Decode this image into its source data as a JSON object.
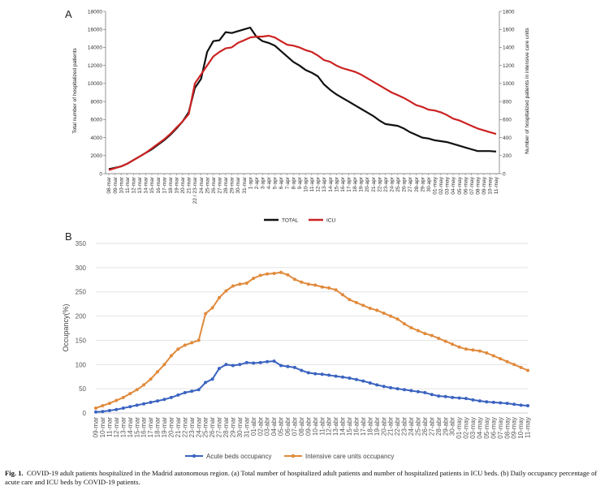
{
  "chart_data": [
    {
      "type": "line",
      "panel_label": "A",
      "ylabel": "Total number of hospitalized patients",
      "y2label": "Number of hospitalized patients in intensive care units",
      "ylim": [
        0,
        18000
      ],
      "y2lim": [
        0,
        1800
      ],
      "yticks": [
        0,
        2000,
        4000,
        6000,
        8000,
        10000,
        12000,
        14000,
        16000,
        18000
      ],
      "y2ticks": [
        0,
        200,
        400,
        600,
        800,
        1000,
        1200,
        1400,
        1600,
        1800
      ],
      "categories": [
        "08-mar",
        "09-mar",
        "10-mar",
        "11-mar",
        "12-mar",
        "13-mar",
        "14-mar",
        "15-mar",
        "16-mar",
        "17-mar",
        "18-mar",
        "19-mar",
        "20-mar",
        "21-mar",
        "22 / 23-mar",
        "24-mar",
        "25-mar",
        "26-mar",
        "27-mar",
        "28-mar",
        "29-mar",
        "30-mar",
        "31-mar",
        "1-apr",
        "2-apr",
        "3-apr",
        "4-apr",
        "5-apr",
        "6-apr",
        "7-apr",
        "8-apr",
        "9-apr",
        "10-apr",
        "11-apr",
        "12-apr",
        "13-apr",
        "14-apr",
        "15-apr",
        "16-apr",
        "17-apr",
        "18-apr",
        "19-apr",
        "20-apr",
        "21-apr",
        "22-apr",
        "23-apr",
        "24-apr",
        "25-apr",
        "26-apr",
        "27-apr",
        "28-apr",
        "29-apr",
        "30-apr",
        "01-may",
        "02-may",
        "03-may",
        "04-may",
        "05-may",
        "06-may",
        "07-may",
        "08-may",
        "09-may",
        "10-may",
        "11-may"
      ],
      "series": [
        {
          "name": "TOTAL",
          "axis": "left",
          "color": "#111111",
          "values": [
            500,
            650,
            800,
            1100,
            1500,
            1900,
            2300,
            2700,
            3200,
            3700,
            4300,
            5000,
            5800,
            6800,
            9500,
            10500,
            13500,
            14700,
            14800,
            15700,
            15600,
            15800,
            16000,
            16200,
            15200,
            14700,
            14500,
            14200,
            13600,
            13000,
            12400,
            12000,
            11500,
            11200,
            10800,
            9900,
            9300,
            8800,
            8400,
            8000,
            7600,
            7200,
            6800,
            6400,
            5900,
            5500,
            5400,
            5300,
            5000,
            4600,
            4300,
            4000,
            3900,
            3700,
            3600,
            3500,
            3300,
            3100,
            2900,
            2700,
            2500,
            2500,
            2500,
            2450
          ]
        },
        {
          "name": "ICU",
          "axis": "right",
          "color": "#cc2222",
          "values": [
            40,
            60,
            80,
            110,
            150,
            190,
            230,
            280,
            330,
            380,
            440,
            510,
            580,
            660,
            1000,
            1100,
            1200,
            1300,
            1350,
            1390,
            1400,
            1450,
            1480,
            1510,
            1520,
            1520,
            1530,
            1510,
            1470,
            1430,
            1420,
            1400,
            1370,
            1350,
            1310,
            1260,
            1240,
            1200,
            1170,
            1150,
            1130,
            1100,
            1060,
            1020,
            980,
            940,
            900,
            870,
            840,
            800,
            760,
            740,
            710,
            700,
            680,
            650,
            610,
            590,
            560,
            530,
            500,
            480,
            460,
            440
          ]
        }
      ],
      "legend_position": "bottom"
    },
    {
      "type": "line",
      "panel_label": "B",
      "ylabel": "Occupancy(%)",
      "ylim": [
        0,
        350
      ],
      "yticks": [
        0,
        50,
        100,
        150,
        200,
        250,
        300,
        350
      ],
      "categories": [
        "09-mar",
        "10-mar",
        "11-mar",
        "12-mar",
        "13-mar",
        "14-mar",
        "15-mar",
        "16-mar",
        "17-mar",
        "18-mar",
        "19-mar",
        "20-mar",
        "21-mar",
        "22-mar",
        "23-mar",
        "24-mar",
        "25-mar",
        "26-mar",
        "27-mar",
        "28-mar",
        "29-mar",
        "30-mar",
        "31-mar",
        "01-abr",
        "02-abr",
        "03-abr",
        "04-abr",
        "05-abr",
        "06-abr",
        "07-abr",
        "08-abr",
        "09-abr",
        "10-abr",
        "11-abr",
        "12-abr",
        "13-abr",
        "14-abr",
        "15-abr",
        "16-abr",
        "17-abr",
        "18-abr",
        "19-abr",
        "20-abr",
        "21-abr",
        "22-abr",
        "23-abr",
        "24-abr",
        "25-abr",
        "26-abr",
        "27-abr",
        "28-abr",
        "29-abr",
        "30-abr",
        "01-may",
        "02-may",
        "03-may",
        "04-may",
        "05-may",
        "06-may",
        "07-may",
        "08-may",
        "09-may",
        "10-may",
        "11-may"
      ],
      "series": [
        {
          "name": "Acute beds occupancy",
          "color": "#3a63c0",
          "values": [
            2,
            3,
            5,
            7,
            10,
            13,
            16,
            19,
            22,
            25,
            28,
            32,
            37,
            42,
            45,
            48,
            63,
            70,
            92,
            100,
            98,
            100,
            104,
            103,
            104,
            106,
            107,
            98,
            96,
            94,
            88,
            83,
            81,
            80,
            78,
            76,
            74,
            72,
            69,
            66,
            62,
            58,
            55,
            52,
            50,
            48,
            46,
            44,
            42,
            38,
            35,
            34,
            32,
            31,
            30,
            27,
            25,
            23,
            22,
            21,
            20,
            18,
            16,
            15
          ]
        },
        {
          "name": "Intensive care units occupancy",
          "color": "#e08a3c",
          "values": [
            10,
            15,
            20,
            26,
            32,
            40,
            48,
            58,
            70,
            85,
            100,
            118,
            132,
            140,
            145,
            150,
            205,
            217,
            238,
            252,
            262,
            266,
            268,
            278,
            284,
            287,
            288,
            290,
            285,
            276,
            270,
            266,
            264,
            260,
            258,
            254,
            244,
            234,
            228,
            222,
            216,
            212,
            206,
            200,
            194,
            184,
            176,
            170,
            164,
            160,
            154,
            148,
            142,
            136,
            132,
            130,
            128,
            124,
            118,
            112,
            106,
            100,
            94,
            88
          ]
        }
      ],
      "legend_position": "bottom"
    }
  ],
  "caption": {
    "label": "Fig. 1.",
    "text": "COVID-19 adult patients hospitalized in the Madrid autonomous region. (a) Total number of hospitalized adult patients and number of hospitalized patients in ICU beds. (b) Daily occupancy percentage of acute care and ICU beds by COVID-19 patients."
  }
}
